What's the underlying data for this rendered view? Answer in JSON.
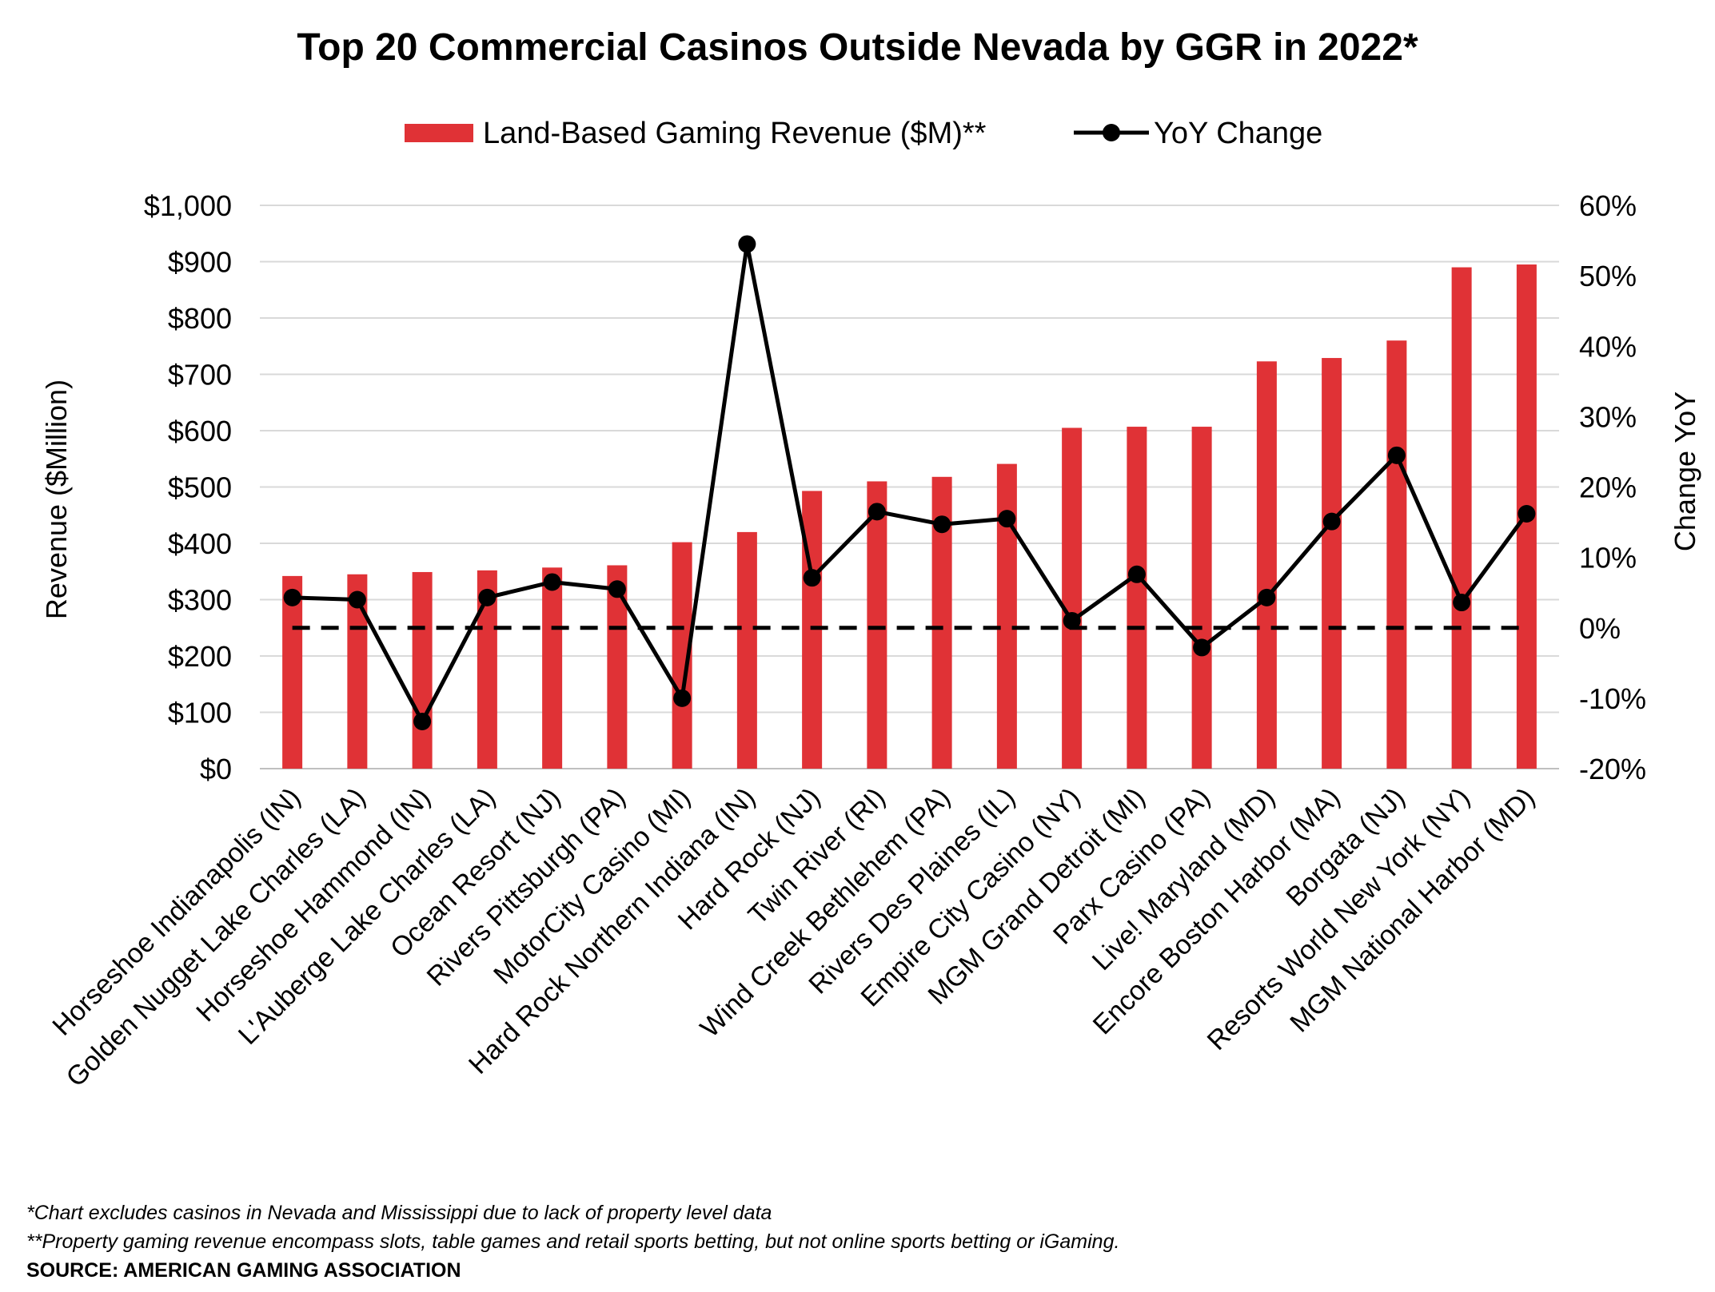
{
  "chart_data": {
    "type": "bar",
    "title": "Top 20 Commercial Casinos Outside Nevada by GGR in 2022*",
    "ylabel": "Revenue ($Million)",
    "y2label": "Change YoY",
    "ylim": [
      0,
      1000
    ],
    "y_ticks": [
      "$0",
      "$100",
      "$200",
      "$300",
      "$400",
      "$500",
      "$600",
      "$700",
      "$800",
      "$900",
      "$1,000"
    ],
    "y2lim": [
      -20,
      60
    ],
    "y2_ticks": [
      "-20%",
      "-10%",
      "0%",
      "10%",
      "20%",
      "30%",
      "40%",
      "50%",
      "60%"
    ],
    "grid": true,
    "legend_position": "top-center",
    "categories": [
      "Horseshoe Indianapolis (IN)",
      "Golden Nugget Lake Charles (LA)",
      "Horseshoe Hammond (IN)",
      "L'Auberge Lake Charles (LA)",
      "Ocean Resort (NJ)",
      "Rivers Pittsburgh (PA)",
      "MotorCity Casino (MI)",
      "Hard Rock Northern Indiana (IN)",
      "Hard Rock (NJ)",
      "Twin River (RI)",
      "Wind Creek Bethlehem (PA)",
      "Rivers Des Plaines (IL)",
      "Empire City Casino (NY)",
      "MGM Grand Detroit (MI)",
      "Parx Casino (PA)",
      "Live! Maryland (MD)",
      "Encore Boston Harbor (MA)",
      "Borgata (NJ)",
      "Resorts World New York (NY)",
      "MGM National Harbor (MD)"
    ],
    "series": [
      {
        "name": "Land-Based Gaming Revenue ($M)**",
        "type": "bar",
        "axis": "left",
        "color": "#e03236",
        "values": [
          342,
          345,
          349,
          352,
          357,
          361,
          402,
          420,
          493,
          510,
          518,
          541,
          605,
          607,
          607,
          723,
          729,
          760,
          890,
          895
        ]
      },
      {
        "name": "YoY Change",
        "type": "line",
        "axis": "right",
        "color": "#000000",
        "values": [
          4.3,
          4.0,
          -13.3,
          4.3,
          6.5,
          5.5,
          -10.0,
          54.5,
          7.1,
          16.5,
          14.7,
          15.5,
          1.0,
          7.6,
          -2.8,
          4.3,
          15.1,
          24.5,
          3.6,
          16.2
        ]
      }
    ],
    "reference_line": {
      "axis": "right",
      "value": 0,
      "style": "dashed"
    }
  },
  "footnotes": [
    "*Chart excludes casinos in Nevada and Mississippi due to lack of property level data",
    "**Property gaming revenue encompass slots, table games and retail sports betting, but not online sports betting or iGaming."
  ],
  "source": "SOURCE: AMERICAN GAMING ASSOCIATION"
}
